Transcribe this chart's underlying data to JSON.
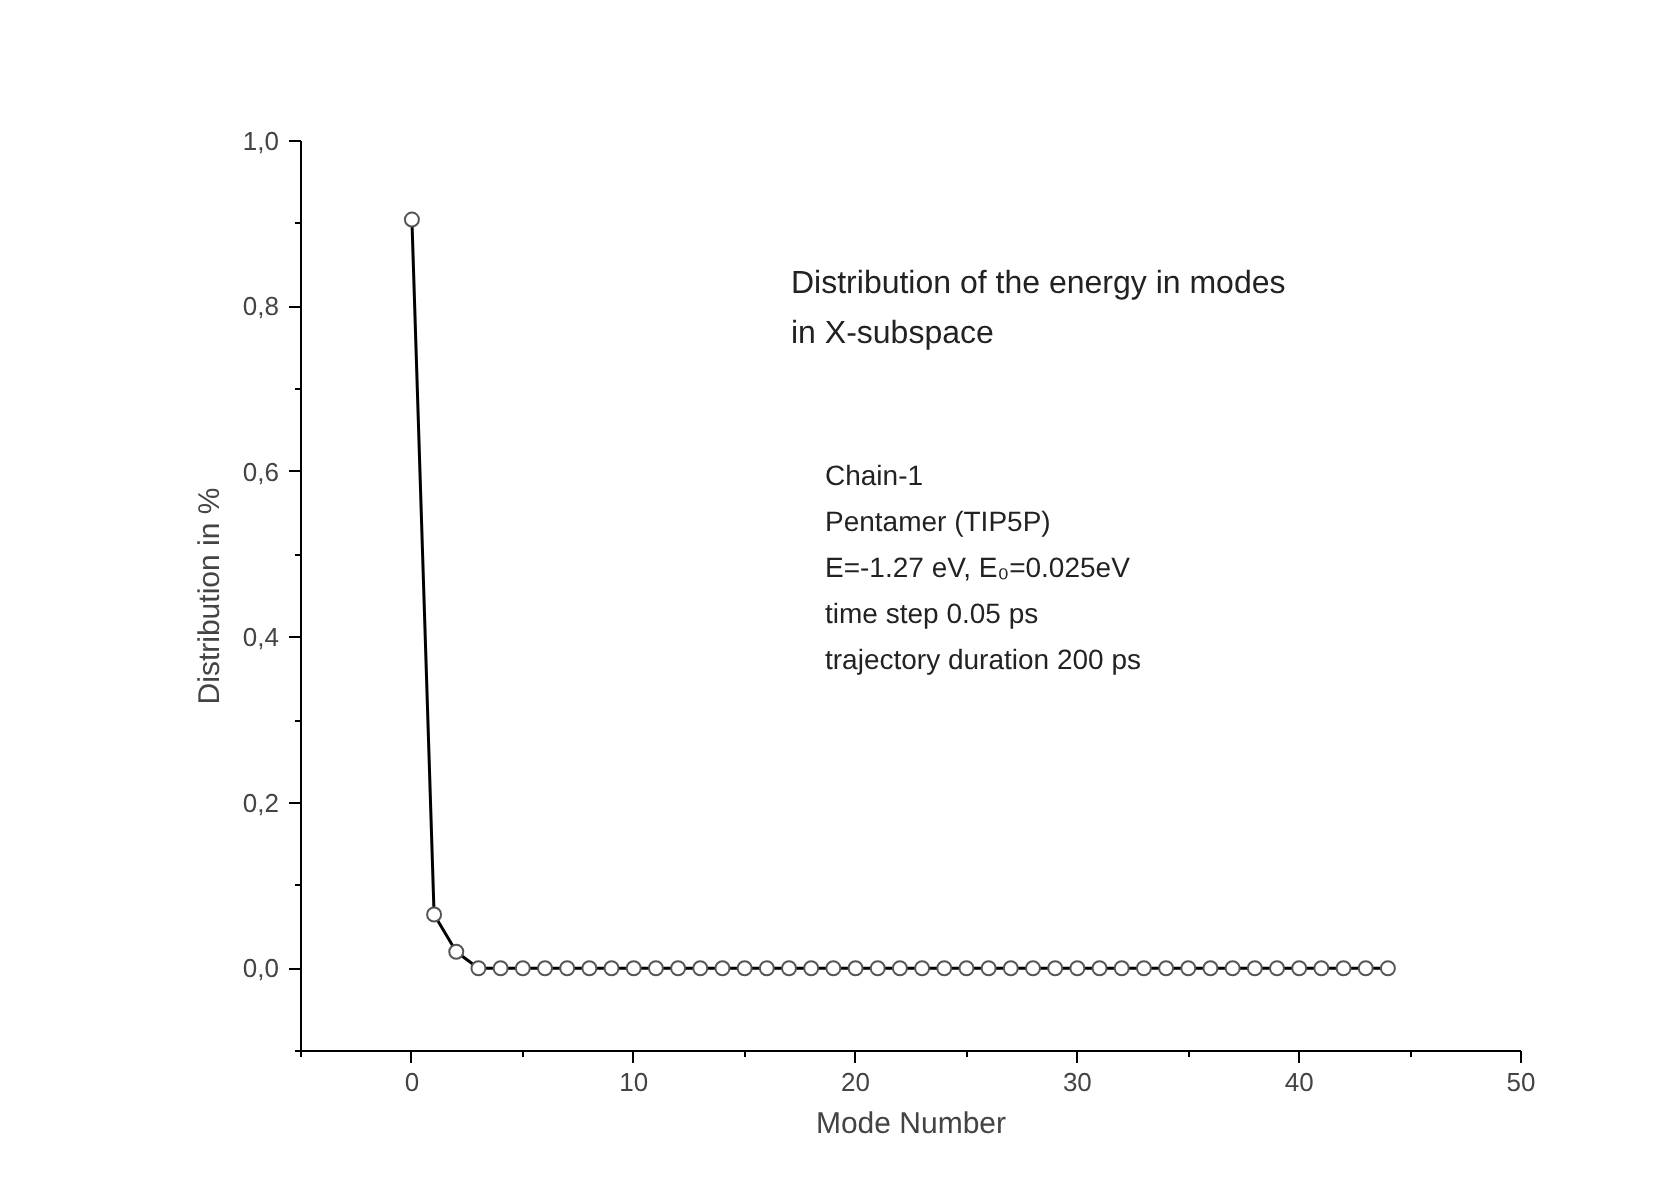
{
  "chart_data": {
    "type": "line",
    "xlabel": "Mode Number",
    "ylabel": "Distribution in %",
    "x": [
      0,
      1,
      2,
      3,
      4,
      5,
      6,
      7,
      8,
      9,
      10,
      11,
      12,
      13,
      14,
      15,
      16,
      17,
      18,
      19,
      20,
      21,
      22,
      23,
      24,
      25,
      26,
      27,
      28,
      29,
      30,
      31,
      32,
      33,
      34,
      35,
      36,
      37,
      38,
      39,
      40,
      41,
      42,
      43,
      44
    ],
    "series": [
      {
        "color": "#000000",
        "values": [
          0.905,
          0.065,
          0.02,
          0,
          0,
          0,
          0,
          0,
          0,
          0,
          0,
          0,
          0,
          0,
          0,
          0,
          0,
          0,
          0,
          0,
          0,
          0,
          0,
          0,
          0,
          0,
          0,
          0,
          0,
          0,
          0,
          0,
          0,
          0,
          0,
          0,
          0,
          0,
          0,
          0,
          0,
          0,
          0,
          0,
          0
        ]
      }
    ],
    "marker": "circle",
    "line_style": "solid",
    "grid": false,
    "xlim": [
      -5,
      50
    ],
    "xticks": [
      0,
      10,
      20,
      30,
      40,
      50
    ],
    "ylim": [
      -0.1,
      1.0
    ],
    "yticks": [
      {
        "value": 0,
        "label": "0,0"
      },
      {
        "value": 0.2,
        "label": "0,2"
      },
      {
        "value": 0.4,
        "label": "0,4"
      },
      {
        "value": 0.6,
        "label": "0,6"
      },
      {
        "value": 0.8,
        "label": "0,8"
      },
      {
        "value": 1.0,
        "label": "1,0"
      }
    ],
    "annotations": [
      "Distribution of the energy in modes\n in X-subspace",
      "Chain-1",
      "Pentamer (TIP5P)",
      "E=-1.27 eV, E₀=0.025eV",
      "time step 0.05 ps",
      "trajectory duration 200 ps"
    ]
  }
}
